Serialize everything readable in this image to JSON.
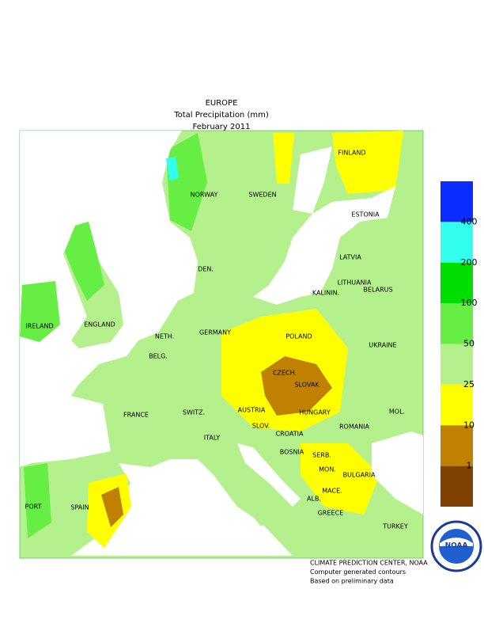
{
  "header": {
    "lines": [
      "EUROPE",
      "Total Precipitation (mm)",
      "February 2011"
    ]
  },
  "countries": [
    "FINLAND",
    "NORWAY",
    "SWEDEN",
    "ESTONIA",
    "LATVIA",
    "LITHUANIA",
    "DEN.",
    "KALININ.",
    "BELARUS",
    "IRELAND",
    "ENGLAND",
    "NETH.",
    "BELG.",
    "GERMANY",
    "POLAND",
    "UKRAINE",
    "CZECH.",
    "SLOVAK",
    "AUSTRIA",
    "HUNGARY",
    "SWITZ.",
    "FRANCE",
    "MOL.",
    "ROMANIA",
    "SLOV.",
    "CROATIA",
    "ITALY",
    "BOSNIA",
    "SERB.",
    "MON.",
    "BULGARIA",
    "MACE.",
    "ALB.",
    "PORT",
    "SPAIN",
    "GREECE",
    "TURKEY"
  ],
  "legend": {
    "levels": [
      400,
      200,
      100,
      50,
      25,
      10,
      1
    ],
    "colors": [
      "#0a2cff",
      "#33ffee",
      "#00dd00",
      "#66ee44",
      "#b4f08c",
      "#ffff00",
      "#c08000",
      "#804000"
    ]
  },
  "footer": {
    "lines": [
      "CLIMATE PREDICTION CENTER, NOAA",
      "Computer generated contours",
      "Based on preliminary data"
    ]
  },
  "logo": {
    "text": "NOAA"
  }
}
